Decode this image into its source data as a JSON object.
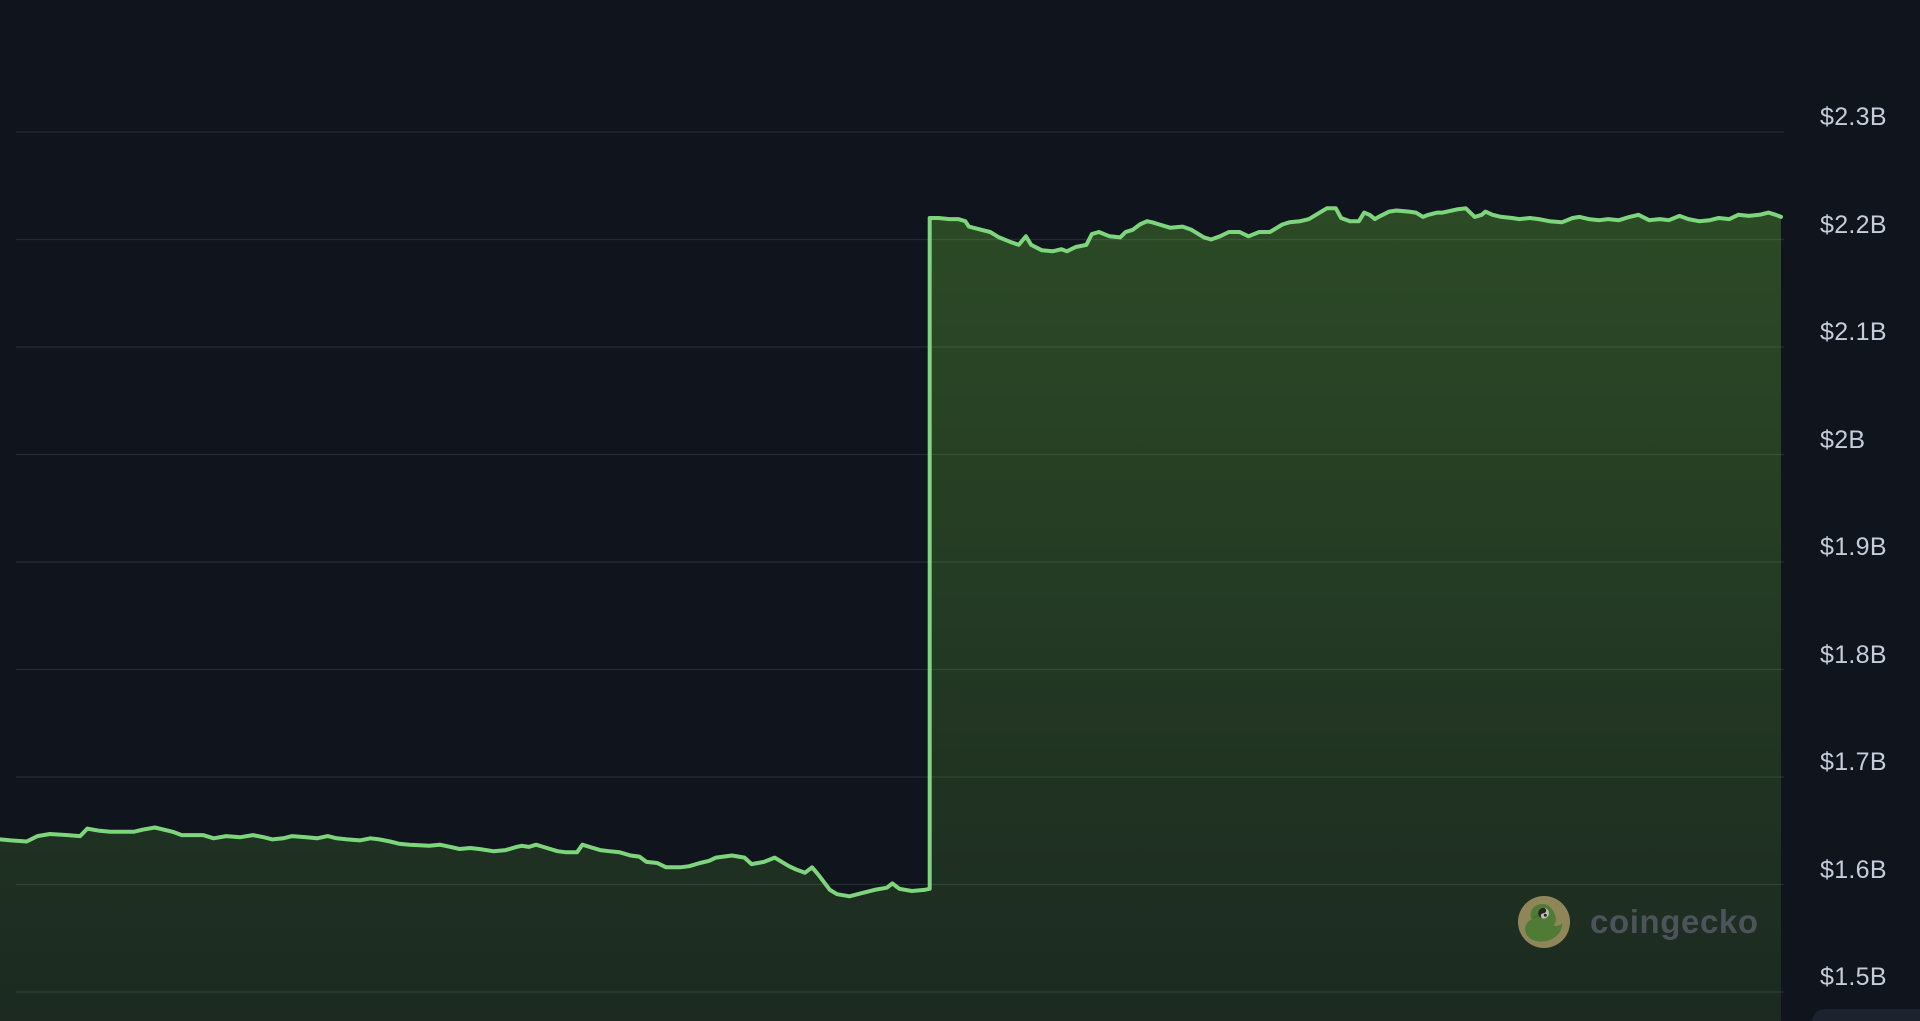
{
  "theme": {
    "background": "#10141d",
    "axis_label_color": "#c5cdda",
    "gridline_color": "#262b33",
    "line_color": "#7ed67c",
    "fill_color_top": "rgba(110,200,60,0.30)",
    "fill_color_bottom": "rgba(110,200,60,0.12)",
    "watermark_text_color": "#4d535b"
  },
  "watermark": {
    "label": "coingecko",
    "icon": "coingecko-gecko-icon"
  },
  "chart_data": {
    "type": "area",
    "title": "",
    "xlabel": "",
    "ylabel": "",
    "grid": true,
    "legend": false,
    "y_axis": {
      "side": "right",
      "unit": "USD billions",
      "ylim": [
        1.47,
        2.42
      ],
      "ticks": [
        {
          "value": 2.3,
          "label": "$2.3B"
        },
        {
          "value": 2.2,
          "label": "$2.2B"
        },
        {
          "value": 2.1,
          "label": "$2.1B"
        },
        {
          "value": 2.0,
          "label": "$2B"
        },
        {
          "value": 1.9,
          "label": "$1.9B"
        },
        {
          "value": 1.8,
          "label": "$1.8B"
        },
        {
          "value": 1.7,
          "label": "$1.7B"
        },
        {
          "value": 1.6,
          "label": "$1.6B"
        },
        {
          "value": 1.5,
          "label": "$1.5B"
        }
      ]
    },
    "series": [
      {
        "color": "#7ed67c",
        "points_format": "[x_percent_of_time_axis, value_in_billions_usd]",
        "points": [
          [
            0,
            1.642
          ],
          [
            0.6,
            1.641
          ],
          [
            1.5,
            1.64
          ],
          [
            2.1,
            1.645
          ],
          [
            2.8,
            1.647
          ],
          [
            3.8,
            1.646
          ],
          [
            4.5,
            1.645
          ],
          [
            4.9,
            1.652
          ],
          [
            5.6,
            1.65
          ],
          [
            6.2,
            1.649
          ],
          [
            7.5,
            1.649
          ],
          [
            8.0,
            1.651
          ],
          [
            8.7,
            1.653
          ],
          [
            9.7,
            1.649
          ],
          [
            10.2,
            1.646
          ],
          [
            11.4,
            1.646
          ],
          [
            12.0,
            1.643
          ],
          [
            12.7,
            1.645
          ],
          [
            13.5,
            1.644
          ],
          [
            14.2,
            1.646
          ],
          [
            14.8,
            1.644
          ],
          [
            15.3,
            1.642
          ],
          [
            15.9,
            1.643
          ],
          [
            16.4,
            1.645
          ],
          [
            17.2,
            1.644
          ],
          [
            17.8,
            1.643
          ],
          [
            18.4,
            1.645
          ],
          [
            18.9,
            1.643
          ],
          [
            19.5,
            1.642
          ],
          [
            20.2,
            1.641
          ],
          [
            20.8,
            1.643
          ],
          [
            21.3,
            1.642
          ],
          [
            21.9,
            1.64
          ],
          [
            22.4,
            1.638
          ],
          [
            23.0,
            1.637
          ],
          [
            24.1,
            1.636
          ],
          [
            24.7,
            1.637
          ],
          [
            25.3,
            1.635
          ],
          [
            25.8,
            1.633
          ],
          [
            26.4,
            1.634
          ],
          [
            26.9,
            1.633
          ],
          [
            27.7,
            1.631
          ],
          [
            28.4,
            1.632
          ],
          [
            29.0,
            1.635
          ],
          [
            29.3,
            1.636
          ],
          [
            29.7,
            1.635
          ],
          [
            30.1,
            1.637
          ],
          [
            30.5,
            1.635
          ],
          [
            30.9,
            1.633
          ],
          [
            31.3,
            1.631
          ],
          [
            31.8,
            1.63
          ],
          [
            32.4,
            1.63
          ],
          [
            32.7,
            1.637
          ],
          [
            33.1,
            1.635
          ],
          [
            33.7,
            1.632
          ],
          [
            34.2,
            1.631
          ],
          [
            34.8,
            1.63
          ],
          [
            35.4,
            1.627
          ],
          [
            35.9,
            1.626
          ],
          [
            36.3,
            1.621
          ],
          [
            36.9,
            1.62
          ],
          [
            37.4,
            1.616
          ],
          [
            38.2,
            1.616
          ],
          [
            38.7,
            1.617
          ],
          [
            39.3,
            1.62
          ],
          [
            39.8,
            1.622
          ],
          [
            40.2,
            1.625
          ],
          [
            41.1,
            1.627
          ],
          [
            41.8,
            1.625
          ],
          [
            42.2,
            1.619
          ],
          [
            42.9,
            1.621
          ],
          [
            43.5,
            1.625
          ],
          [
            44.3,
            1.617
          ],
          [
            44.7,
            1.614
          ],
          [
            45.2,
            1.611
          ],
          [
            45.6,
            1.616
          ],
          [
            46.0,
            1.608
          ],
          [
            46.6,
            1.595
          ],
          [
            47.0,
            1.591
          ],
          [
            47.7,
            1.589
          ],
          [
            48.4,
            1.592
          ],
          [
            49.1,
            1.595
          ],
          [
            49.8,
            1.597
          ],
          [
            50.1,
            1.601
          ],
          [
            50.5,
            1.596
          ],
          [
            51.2,
            1.594
          ],
          [
            51.9,
            1.595
          ],
          [
            52.2,
            1.596
          ],
          [
            52.2,
            2.22
          ],
          [
            52.7,
            2.22
          ],
          [
            53.3,
            2.219
          ],
          [
            53.8,
            2.219
          ],
          [
            54.2,
            2.217
          ],
          [
            54.4,
            2.212
          ],
          [
            55.1,
            2.209
          ],
          [
            55.6,
            2.207
          ],
          [
            56.1,
            2.202
          ],
          [
            56.7,
            2.198
          ],
          [
            57.2,
            2.195
          ],
          [
            57.6,
            2.203
          ],
          [
            57.9,
            2.195
          ],
          [
            58.5,
            2.19
          ],
          [
            59.1,
            2.189
          ],
          [
            59.6,
            2.191
          ],
          [
            59.9,
            2.189
          ],
          [
            60.4,
            2.193
          ],
          [
            61.0,
            2.195
          ],
          [
            61.3,
            2.205
          ],
          [
            61.7,
            2.207
          ],
          [
            62.3,
            2.203
          ],
          [
            62.9,
            2.202
          ],
          [
            63.2,
            2.207
          ],
          [
            63.6,
            2.209
          ],
          [
            64.0,
            2.214
          ],
          [
            64.4,
            2.217
          ],
          [
            64.7,
            2.216
          ],
          [
            65.1,
            2.214
          ],
          [
            65.7,
            2.211
          ],
          [
            66.4,
            2.212
          ],
          [
            66.9,
            2.209
          ],
          [
            67.6,
            2.202
          ],
          [
            68.0,
            2.2
          ],
          [
            68.5,
            2.203
          ],
          [
            69.0,
            2.207
          ],
          [
            69.6,
            2.207
          ],
          [
            70.1,
            2.203
          ],
          [
            70.7,
            2.207
          ],
          [
            71.3,
            2.207
          ],
          [
            72.0,
            2.214
          ],
          [
            72.4,
            2.216
          ],
          [
            73.0,
            2.217
          ],
          [
            73.5,
            2.219
          ],
          [
            74.5,
            2.229
          ],
          [
            75.0,
            2.229
          ],
          [
            75.3,
            2.22
          ],
          [
            75.8,
            2.217
          ],
          [
            76.3,
            2.217
          ],
          [
            76.6,
            2.225
          ],
          [
            76.9,
            2.223
          ],
          [
            77.2,
            2.219
          ],
          [
            77.4,
            2.221
          ],
          [
            78.0,
            2.226
          ],
          [
            78.4,
            2.227
          ],
          [
            79.1,
            2.226
          ],
          [
            79.5,
            2.225
          ],
          [
            79.9,
            2.221
          ],
          [
            80.2,
            2.223
          ],
          [
            80.7,
            2.225
          ],
          [
            81.0,
            2.225
          ],
          [
            81.8,
            2.228
          ],
          [
            82.3,
            2.229
          ],
          [
            82.8,
            2.221
          ],
          [
            83.2,
            2.223
          ],
          [
            83.4,
            2.226
          ],
          [
            83.8,
            2.223
          ],
          [
            84.3,
            2.221
          ],
          [
            84.9,
            2.22
          ],
          [
            85.3,
            2.219
          ],
          [
            85.9,
            2.22
          ],
          [
            86.4,
            2.219
          ],
          [
            87.0,
            2.217
          ],
          [
            87.7,
            2.216
          ],
          [
            88.3,
            2.22
          ],
          [
            88.7,
            2.221
          ],
          [
            89.2,
            2.219
          ],
          [
            89.8,
            2.218
          ],
          [
            90.3,
            2.219
          ],
          [
            90.9,
            2.218
          ],
          [
            91.5,
            2.221
          ],
          [
            92.0,
            2.223
          ],
          [
            92.6,
            2.218
          ],
          [
            93.2,
            2.219
          ],
          [
            93.7,
            2.218
          ],
          [
            94.3,
            2.222
          ],
          [
            94.8,
            2.219
          ],
          [
            95.4,
            2.217
          ],
          [
            96.0,
            2.218
          ],
          [
            96.5,
            2.22
          ],
          [
            97.1,
            2.219
          ],
          [
            97.6,
            2.223
          ],
          [
            98.2,
            2.222
          ],
          [
            98.8,
            2.223
          ],
          [
            99.3,
            2.225
          ],
          [
            99.7,
            2.223
          ],
          [
            100,
            2.221
          ]
        ]
      }
    ]
  }
}
